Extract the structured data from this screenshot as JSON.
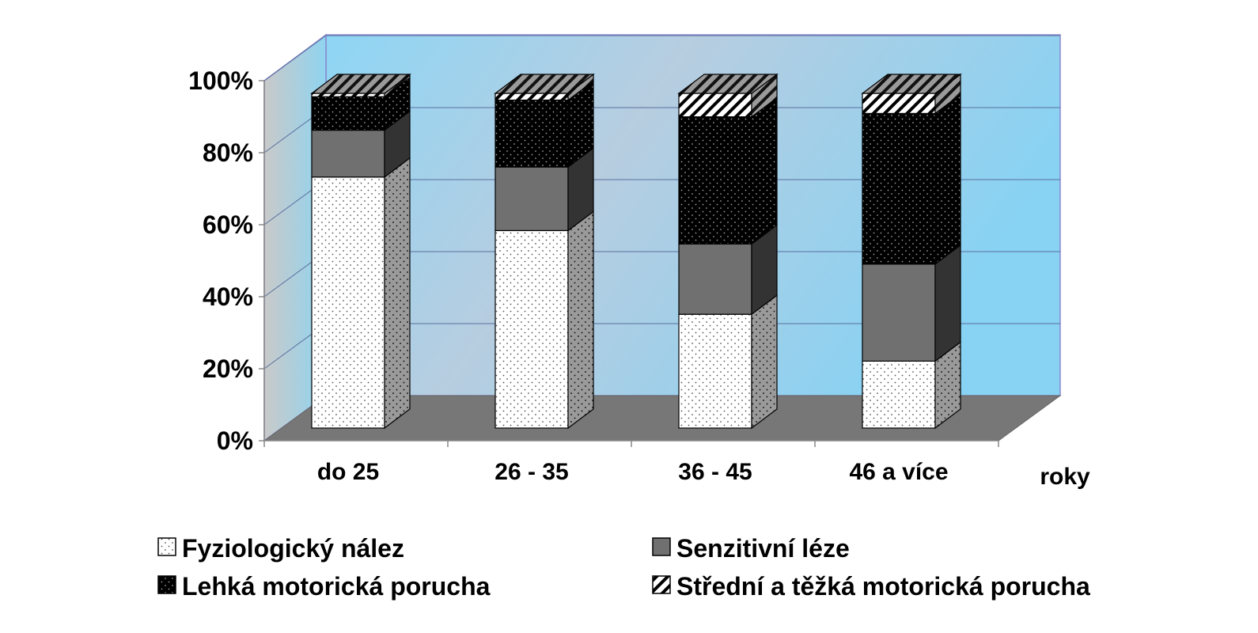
{
  "chart_data": {
    "type": "bar",
    "stacked": true,
    "three_d": true,
    "categories": [
      "do 25",
      "26 - 35",
      "36 - 45",
      "46 a více"
    ],
    "x_unit_label": "roky",
    "yticks": [
      "0%",
      "20%",
      "40%",
      "60%",
      "80%",
      "100%"
    ],
    "ylim": [
      0,
      100
    ],
    "grid": true,
    "legend_position": "bottom",
    "series": [
      {
        "name": "Fyziologický nález",
        "values": [
          75,
          59,
          34,
          20
        ],
        "pattern": "dots-light"
      },
      {
        "name": "Senzitivní léze",
        "values": [
          14,
          19,
          21,
          29
        ],
        "pattern": "gray"
      },
      {
        "name": "Lehká motorická porucha",
        "values": [
          10,
          20,
          38,
          45
        ],
        "pattern": "dots-dark"
      },
      {
        "name": "Střední a těžká motorická porucha",
        "values": [
          1,
          2,
          7,
          6
        ],
        "pattern": "hatch"
      }
    ],
    "colors": {
      "back_wall": "#87ceeb",
      "side_wall": "#87ceeb",
      "floor": "#777777",
      "gridline": "#5a6f9e",
      "gray_series": "#707070",
      "dark_series": "#000000"
    }
  }
}
